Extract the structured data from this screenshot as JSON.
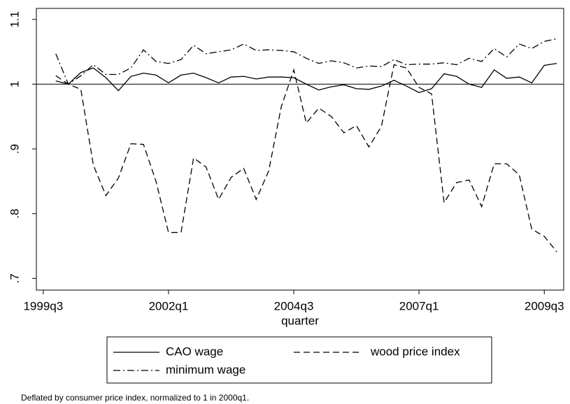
{
  "chart_data": {
    "type": "line",
    "x_label": "quarter",
    "note": "Deflated by consumer price index, normalized to 1 in 2000q1.",
    "x": [
      159,
      160,
      161,
      162,
      163,
      164,
      165,
      166,
      167,
      168,
      169,
      170,
      171,
      172,
      173,
      174,
      175,
      176,
      177,
      178,
      179,
      180,
      181,
      182,
      183,
      184,
      185,
      186,
      187,
      188,
      189,
      190,
      191,
      192,
      193,
      194,
      195,
      196,
      197,
      198,
      199
    ],
    "xlim": [
      157.45,
      199.55
    ],
    "xticks": [
      {
        "value": 158,
        "label": "1999q3"
      },
      {
        "value": 168,
        "label": "2002q1"
      },
      {
        "value": 178,
        "label": "2004q3"
      },
      {
        "value": 188,
        "label": "2007q1"
      },
      {
        "value": 198,
        "label": "2009q3"
      }
    ],
    "ylim": [
      0.682,
      1.117
    ],
    "yticks": [
      {
        "value": 0.7,
        "label": ".7"
      },
      {
        "value": 0.8,
        "label": ".8"
      },
      {
        "value": 0.9,
        "label": ".9"
      },
      1,
      1.1
    ],
    "reference_line": 1,
    "series": [
      {
        "name": "CAO wage",
        "color": "#000000",
        "dash": "solid",
        "values": [
          1.005,
          1.0,
          1.018,
          1.025,
          1.01,
          0.99,
          1.012,
          1.017,
          1.014,
          1.002,
          1.014,
          1.017,
          1.01,
          1.002,
          1.011,
          1.012,
          1.008,
          1.011,
          1.011,
          1.01,
          1.0,
          0.991,
          0.996,
          0.999,
          0.993,
          0.992,
          0.997,
          1.006,
          0.997,
          0.987,
          0.993,
          1.016,
          1.012,
          1.0,
          0.995,
          1.022,
          1.009,
          1.011,
          1.002,
          1.029,
          1.032
        ]
      },
      {
        "name": "wood price index",
        "color": "#000000",
        "dash": "dashed",
        "values": [
          1.013,
          1.0,
          0.992,
          0.875,
          0.828,
          0.855,
          0.908,
          0.907,
          0.85,
          0.771,
          0.771,
          0.886,
          0.872,
          0.822,
          0.856,
          0.87,
          0.822,
          0.866,
          0.965,
          1.022,
          0.94,
          0.963,
          0.95,
          0.925,
          0.936,
          0.903,
          0.935,
          1.03,
          1.025,
          0.995,
          0.985,
          0.817,
          0.848,
          0.852,
          0.811,
          0.877,
          0.877,
          0.86,
          0.776,
          0.765,
          0.741
        ]
      },
      {
        "name": "minimum wage",
        "color": "#000000",
        "dash": "dashdot",
        "values": [
          1.047,
          1.0,
          1.013,
          1.03,
          1.015,
          1.015,
          1.025,
          1.053,
          1.035,
          1.032,
          1.038,
          1.06,
          1.047,
          1.05,
          1.053,
          1.062,
          1.052,
          1.053,
          1.052,
          1.05,
          1.04,
          1.032,
          1.036,
          1.033,
          1.025,
          1.028,
          1.027,
          1.038,
          1.03,
          1.031,
          1.031,
          1.033,
          1.03,
          1.04,
          1.035,
          1.055,
          1.042,
          1.062,
          1.055,
          1.066,
          1.07
        ]
      }
    ]
  }
}
